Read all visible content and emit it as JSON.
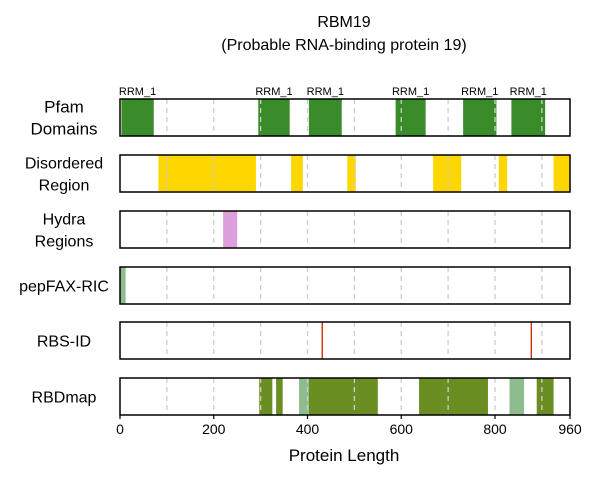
{
  "chart_data": {
    "type": "track",
    "title_line1": "RBM19",
    "title_line2": "(Probable RNA-binding protein 19)",
    "xlabel": "Protein Length",
    "xlim": [
      0,
      960
    ],
    "xticks": [
      0,
      200,
      400,
      600,
      800,
      960
    ],
    "gridlines": [
      100,
      200,
      300,
      400,
      500,
      600,
      700,
      800,
      900
    ],
    "tracks": [
      {
        "id": "pfam",
        "label_lines": [
          "Pfam",
          "Domains"
        ],
        "color": "#3a8c2a",
        "segments": [
          {
            "start": 3,
            "end": 72,
            "label": "RRM_1"
          },
          {
            "start": 295,
            "end": 362,
            "label": "RRM_1"
          },
          {
            "start": 403,
            "end": 473,
            "label": "RRM_1"
          },
          {
            "start": 588,
            "end": 652,
            "label": "RRM_1"
          },
          {
            "start": 732,
            "end": 803,
            "label": "RRM_1"
          },
          {
            "start": 835,
            "end": 907,
            "label": "RRM_1"
          }
        ]
      },
      {
        "id": "disordered",
        "label_lines": [
          "Disordered",
          "Region"
        ],
        "color": "#ffd700",
        "segments": [
          {
            "start": 82,
            "end": 290
          },
          {
            "start": 365,
            "end": 390
          },
          {
            "start": 485,
            "end": 503
          },
          {
            "start": 668,
            "end": 728
          },
          {
            "start": 808,
            "end": 826
          },
          {
            "start": 925,
            "end": 960
          }
        ]
      },
      {
        "id": "hydra",
        "label_lines": [
          "Hydra",
          "Regions"
        ],
        "color": "#dda0dd",
        "segments": [
          {
            "start": 220,
            "end": 250
          }
        ]
      },
      {
        "id": "pepfax",
        "label_lines": [
          "pepFAX-RIC"
        ],
        "color": "#8fbc8f",
        "segments": [
          {
            "start": 0,
            "end": 12
          }
        ]
      },
      {
        "id": "rbsid",
        "label_lines": [
          "RBS-ID"
        ],
        "color": "#cc3300",
        "segments": [
          {
            "start": 430,
            "end": 433
          },
          {
            "start": 876,
            "end": 879
          }
        ]
      },
      {
        "id": "rbdmap",
        "label_lines": [
          "RBDmap"
        ],
        "segments": [
          {
            "start": 297,
            "end": 325,
            "color": "#6b8e23"
          },
          {
            "start": 333,
            "end": 347,
            "color": "#6b8e23"
          },
          {
            "start": 382,
            "end": 403,
            "color": "#8fbc8f"
          },
          {
            "start": 403,
            "end": 550,
            "color": "#6b8e23"
          },
          {
            "start": 638,
            "end": 785,
            "color": "#6b8e23"
          },
          {
            "start": 831,
            "end": 862,
            "color": "#8fbc8f"
          },
          {
            "start": 889,
            "end": 925,
            "color": "#6b8e23"
          }
        ]
      }
    ]
  }
}
